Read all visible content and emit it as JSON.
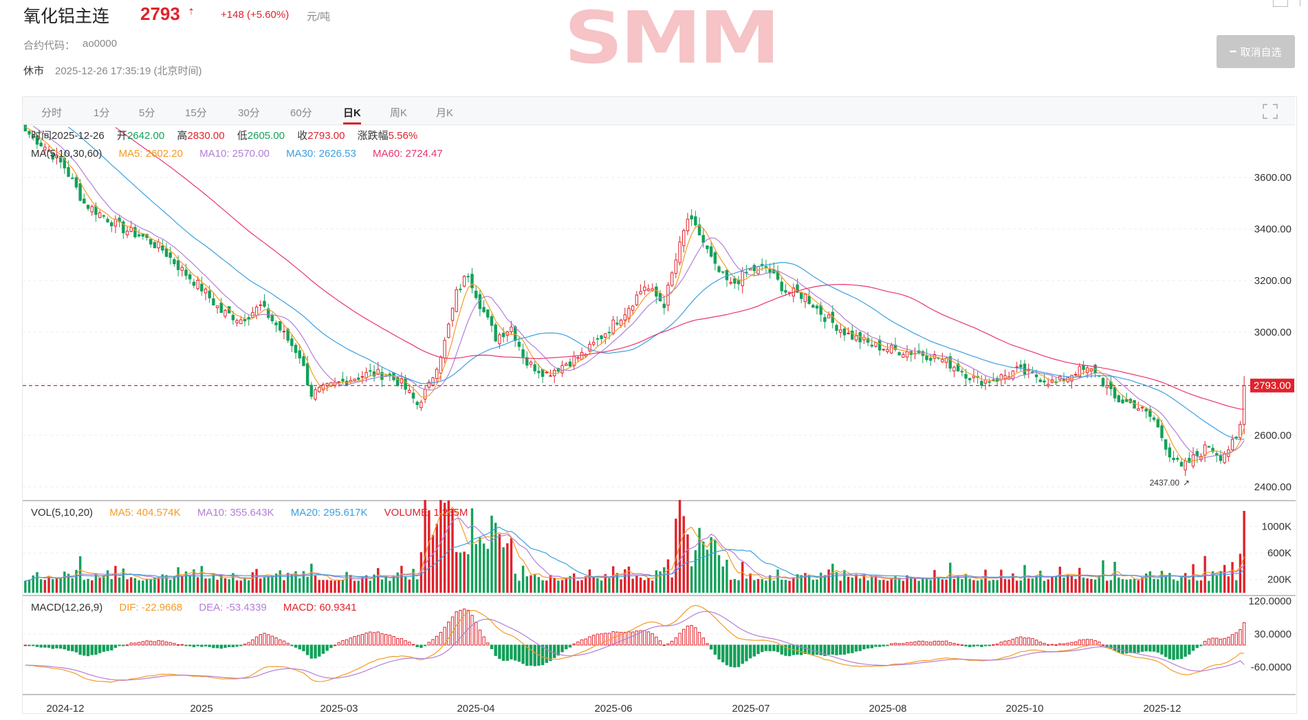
{
  "header": {
    "title": "氧化铝主连",
    "price": "2793",
    "arrow": "⇡",
    "change": "+148 (+5.60%)",
    "unit": "元/吨",
    "code_label": "合约代码：",
    "code": "ao0000",
    "status": "休市",
    "time": "2025-12-26 17:35:19 (北京时间)",
    "watermark": "SMM",
    "fav_button": "取消自选"
  },
  "tabs": [
    "分时",
    "1分",
    "5分",
    "15分",
    "30分",
    "60分",
    "日K",
    "周K",
    "月K"
  ],
  "active_tab": "日K",
  "info": {
    "time_label": "时间",
    "time": "2025-12-26",
    "open_label": "开",
    "open": "2642.00",
    "high_label": "高",
    "high": "2830.00",
    "low_label": "低",
    "low": "2605.00",
    "close_label": "收",
    "close": "2793.00",
    "chg_label": "涨跌幅",
    "chg": "5.56%",
    "ma_label": "MA(5,10,30,60)",
    "ma5": "MA5: 2602.20",
    "ma10": "MA10: 2570.00",
    "ma30": "MA30: 2626.53",
    "ma60": "MA60: 2724.47",
    "vol_label": "VOL(5,10,20)",
    "vma5": "MA5: 404.574K",
    "vma10": "MA10: 355.643K",
    "vma20": "MA20: 295.617K",
    "volume": "VOLUME: 1.235M",
    "macd_label": "MACD(12,26,9)",
    "dif": "DIF: -22.9668",
    "dea": "DEA: -53.4339",
    "macd": "MACD: 60.9341"
  },
  "chart_data": {
    "type": "candlestick",
    "x_ticks": [
      "2024-12",
      "2025",
      "2025-03",
      "2025-04",
      "2025-06",
      "2025-07",
      "2025-08",
      "2025-10",
      "2025-12"
    ],
    "price_axis": {
      "ticks": [
        "3600.00",
        "3400.00",
        "3200.00",
        "3000.00",
        "2600.00",
        "2400.00"
      ],
      "ylim": [
        2360,
        3820
      ]
    },
    "last_price_label": "2793.00",
    "min_label": "2437.00",
    "close_anchors": [
      [
        0,
        3780
      ],
      [
        5,
        3720
      ],
      [
        10,
        3640
      ],
      [
        15,
        3500
      ],
      [
        20,
        3450
      ],
      [
        25,
        3400
      ],
      [
        30,
        3370
      ],
      [
        35,
        3320
      ],
      [
        40,
        3240
      ],
      [
        45,
        3170
      ],
      [
        50,
        3080
      ],
      [
        55,
        3050
      ],
      [
        60,
        3100
      ],
      [
        65,
        3010
      ],
      [
        70,
        2910
      ],
      [
        73,
        2760
      ],
      [
        78,
        2790
      ],
      [
        83,
        2820
      ],
      [
        88,
        2840
      ],
      [
        92,
        2835
      ],
      [
        96,
        2800
      ],
      [
        100,
        2720
      ],
      [
        103,
        2790
      ],
      [
        107,
        2960
      ],
      [
        110,
        3150
      ],
      [
        113,
        3230
      ],
      [
        116,
        3110
      ],
      [
        120,
        2980
      ],
      [
        124,
        3020
      ],
      [
        128,
        2880
      ],
      [
        133,
        2840
      ],
      [
        138,
        2880
      ],
      [
        143,
        2920
      ],
      [
        148,
        3000
      ],
      [
        153,
        3080
      ],
      [
        158,
        3180
      ],
      [
        163,
        3110
      ],
      [
        166,
        3280
      ],
      [
        169,
        3440
      ],
      [
        172,
        3380
      ],
      [
        176,
        3250
      ],
      [
        180,
        3180
      ],
      [
        185,
        3240
      ],
      [
        189,
        3250
      ],
      [
        194,
        3160
      ],
      [
        199,
        3140
      ],
      [
        204,
        3060
      ],
      [
        210,
        2990
      ],
      [
        216,
        2950
      ],
      [
        222,
        2930
      ],
      [
        228,
        2920
      ],
      [
        233,
        2900
      ],
      [
        238,
        2860
      ],
      [
        243,
        2810
      ],
      [
        248,
        2820
      ],
      [
        253,
        2850
      ],
      [
        258,
        2830
      ],
      [
        263,
        2800
      ],
      [
        268,
        2850
      ],
      [
        273,
        2850
      ],
      [
        278,
        2740
      ],
      [
        283,
        2720
      ],
      [
        288,
        2660
      ],
      [
        292,
        2530
      ],
      [
        295,
        2470
      ],
      [
        298,
        2510
      ],
      [
        302,
        2560
      ],
      [
        305,
        2520
      ],
      [
        309,
        2580
      ],
      [
        310,
        2642
      ],
      [
        311,
        2793
      ]
    ],
    "price_series": [
      {
        "name": "MA5",
        "color": "#f59a23",
        "value": 2602.2
      },
      {
        "name": "MA10",
        "color": "#b27fd6",
        "value": 2570.0
      },
      {
        "name": "MA30",
        "color": "#3b9fe0",
        "value": 2626.53
      },
      {
        "name": "MA60",
        "color": "#e8336f",
        "value": 2724.47
      }
    ],
    "volume_axis": {
      "ticks": [
        "1000K",
        "600K",
        "200K"
      ]
    },
    "volume_last": 1235000,
    "macd_axis": {
      "ticks": [
        "120.0000",
        "30.0000",
        "-60.0000"
      ]
    },
    "macd_last": {
      "dif": -22.9668,
      "dea": -53.4339,
      "macd": 60.9341
    },
    "colors": {
      "up": "#e0222b",
      "down": "#14a05a",
      "dashed": "#e0222b"
    }
  }
}
